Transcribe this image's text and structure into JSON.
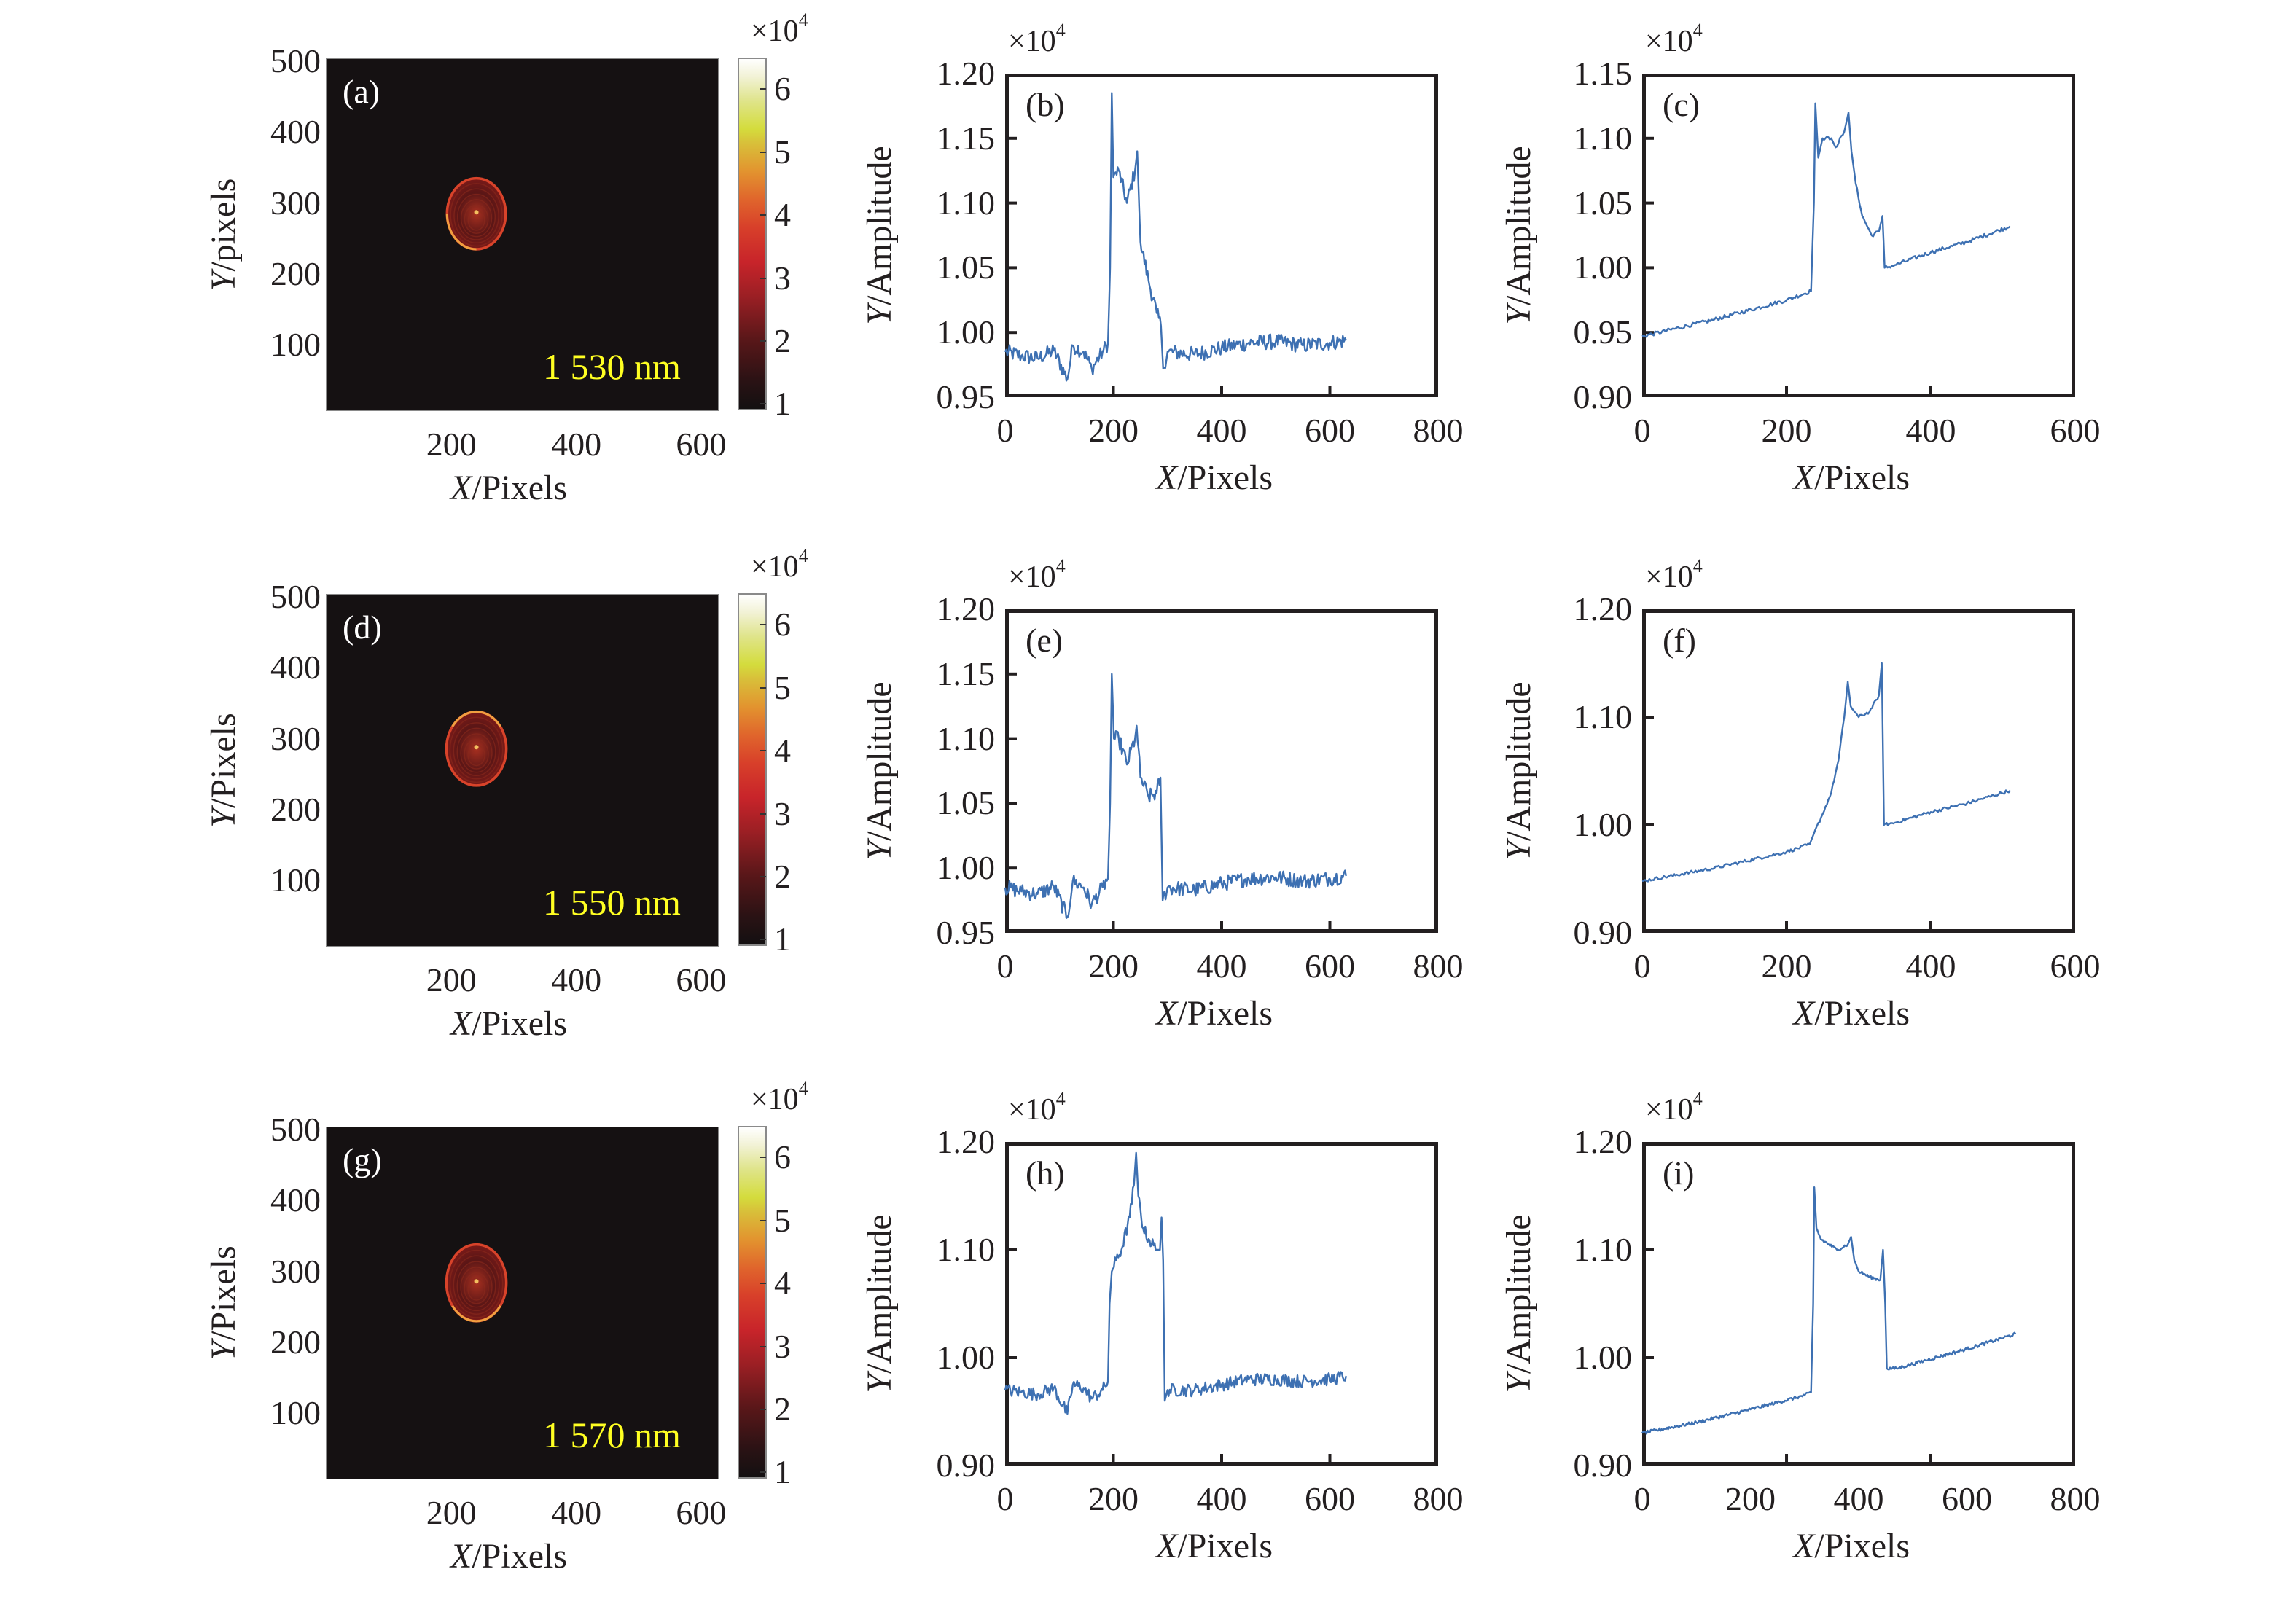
{
  "figure": {
    "colorbar_exponent_prefix": "×10",
    "colorbar_exponent_power": "4",
    "amplitude_exponent_prefix": "×10",
    "amplitude_exponent_power": "4",
    "xlabel_var": "X",
    "xlabel_unit": "/Pixels",
    "ylabel_amp_var": "Y",
    "ylabel_amp_unit": "/Amplitude",
    "colors": {
      "line": "#3d70b2",
      "wavelength_text": "#ffff22",
      "heat_background": "#151112"
    }
  },
  "chart_data": [
    {
      "id": "a",
      "type": "heatmap",
      "panel_label": "(a)",
      "wavelength": "1 530 nm",
      "ylabel_var": "Y",
      "ylabel_unit": "/pixels",
      "xlabel": "X/Pixels",
      "xticks": [
        200,
        400,
        600
      ],
      "yticks": [
        100,
        200,
        300,
        400,
        500
      ],
      "xlim": [
        0,
        627
      ],
      "ylim": [
        8,
        503
      ],
      "colorbar": {
        "ticks": [
          1,
          2,
          3,
          4,
          5,
          6
        ],
        "range": [
          0.9,
          6.5
        ],
        "scale": "×10^4"
      },
      "spot": {
        "cx": 240,
        "cy": 285,
        "rx": 47,
        "ry": 50,
        "bright_edge": "lower-left"
      }
    },
    {
      "id": "b",
      "type": "line",
      "panel_label": "(b)",
      "xlabel": "X/Pixels",
      "ylabel": "Y/Amplitude",
      "scale": "×10^4",
      "xlim": [
        0,
        800
      ],
      "ylim": [
        0.95,
        1.2
      ],
      "xticks": [
        "0",
        "200",
        "400",
        "600",
        "800"
      ],
      "xtick_values": [
        0,
        200,
        400,
        600,
        800
      ],
      "yticks": [
        "0.95",
        "1.00",
        "1.05",
        "1.10",
        "1.15",
        "1.20"
      ],
      "ytick_values": [
        0.95,
        1.0,
        1.05,
        1.1,
        1.15,
        1.2
      ],
      "noise": 0.006,
      "points": [
        [
          0,
          0.985
        ],
        [
          30,
          0.982
        ],
        [
          60,
          0.98
        ],
        [
          90,
          0.986
        ],
        [
          115,
          0.964
        ],
        [
          125,
          0.99
        ],
        [
          145,
          0.985
        ],
        [
          160,
          0.972
        ],
        [
          180,
          0.985
        ],
        [
          190,
          0.992
        ],
        [
          194,
          1.05
        ],
        [
          197,
          1.185
        ],
        [
          200,
          1.12
        ],
        [
          210,
          1.125
        ],
        [
          225,
          1.1
        ],
        [
          240,
          1.125
        ],
        [
          244,
          1.14
        ],
        [
          250,
          1.07
        ],
        [
          265,
          1.04
        ],
        [
          280,
          1.015
        ],
        [
          288,
          1.005
        ],
        [
          292,
          0.972
        ],
        [
          300,
          0.985
        ],
        [
          350,
          0.983
        ],
        [
          400,
          0.988
        ],
        [
          450,
          0.992
        ],
        [
          500,
          0.993
        ],
        [
          550,
          0.99
        ],
        [
          600,
          0.992
        ],
        [
          630,
          0.994
        ]
      ]
    },
    {
      "id": "c",
      "type": "line",
      "panel_label": "(c)",
      "xlabel": "X/Pixels",
      "ylabel": "Y/Amplitude",
      "scale": "×10^4",
      "xlim": [
        0,
        600
      ],
      "ylim": [
        0.9,
        1.15
      ],
      "xticks": [
        "0",
        "200",
        "400",
        "600"
      ],
      "xtick_values": [
        0,
        200,
        400,
        600
      ],
      "yticks": [
        "0.90",
        "0.95",
        "1.00",
        "1.05",
        "1.10",
        "1.15"
      ],
      "ytick_values": [
        0.9,
        0.95,
        1.0,
        1.05,
        1.1,
        1.15
      ],
      "noise": 0.0015,
      "points": [
        [
          0,
          0.947
        ],
        [
          100,
          0.96
        ],
        [
          200,
          0.975
        ],
        [
          234,
          0.982
        ],
        [
          238,
          1.05
        ],
        [
          240,
          1.127
        ],
        [
          244,
          1.085
        ],
        [
          250,
          1.1
        ],
        [
          262,
          1.1
        ],
        [
          268,
          1.093
        ],
        [
          280,
          1.105
        ],
        [
          286,
          1.12
        ],
        [
          290,
          1.09
        ],
        [
          296,
          1.065
        ],
        [
          305,
          1.04
        ],
        [
          318,
          1.025
        ],
        [
          328,
          1.028
        ],
        [
          333,
          1.04
        ],
        [
          336,
          1.0
        ],
        [
          350,
          1.002
        ],
        [
          400,
          1.012
        ],
        [
          450,
          1.02
        ],
        [
          510,
          1.032
        ]
      ]
    },
    {
      "id": "d",
      "type": "heatmap",
      "panel_label": "(d)",
      "wavelength": "1 550 nm",
      "ylabel_var": "Y",
      "ylabel_unit": "/Pixels",
      "xlabel": "X/Pixels",
      "xticks": [
        200,
        400,
        600
      ],
      "yticks": [
        100,
        200,
        300,
        400,
        500
      ],
      "xlim": [
        0,
        627
      ],
      "ylim": [
        8,
        503
      ],
      "colorbar": {
        "ticks": [
          1,
          2,
          3,
          4,
          5,
          6
        ],
        "range": [
          0.9,
          6.5
        ],
        "scale": "×10^4"
      },
      "spot": {
        "cx": 240,
        "cy": 286,
        "rx": 48,
        "ry": 52,
        "bright_edge": "top"
      }
    },
    {
      "id": "e",
      "type": "line",
      "panel_label": "(e)",
      "xlabel": "X/Pixels",
      "ylabel": "Y/Amplitude",
      "scale": "×10^4",
      "xlim": [
        0,
        800
      ],
      "ylim": [
        0.95,
        1.2
      ],
      "xticks": [
        "0",
        "200",
        "400",
        "600",
        "800"
      ],
      "xtick_values": [
        0,
        200,
        400,
        600,
        800
      ],
      "yticks": [
        "0.95",
        "1.00",
        "1.05",
        "1.10",
        "1.15",
        "1.20"
      ],
      "ytick_values": [
        0.95,
        1.0,
        1.05,
        1.1,
        1.15,
        1.2
      ],
      "noise": 0.006,
      "points": [
        [
          0,
          0.985
        ],
        [
          30,
          0.982
        ],
        [
          60,
          0.98
        ],
        [
          90,
          0.986
        ],
        [
          115,
          0.962
        ],
        [
          125,
          0.99
        ],
        [
          145,
          0.985
        ],
        [
          160,
          0.972
        ],
        [
          180,
          0.985
        ],
        [
          190,
          0.992
        ],
        [
          194,
          1.05
        ],
        [
          197,
          1.15
        ],
        [
          201,
          1.1
        ],
        [
          210,
          1.1
        ],
        [
          225,
          1.08
        ],
        [
          240,
          1.1
        ],
        [
          243,
          1.11
        ],
        [
          250,
          1.07
        ],
        [
          265,
          1.055
        ],
        [
          280,
          1.058
        ],
        [
          287,
          1.07
        ],
        [
          291,
          0.975
        ],
        [
          300,
          0.985
        ],
        [
          350,
          0.983
        ],
        [
          400,
          0.988
        ],
        [
          450,
          0.992
        ],
        [
          500,
          0.993
        ],
        [
          550,
          0.99
        ],
        [
          600,
          0.992
        ],
        [
          630,
          0.994
        ]
      ]
    },
    {
      "id": "f",
      "type": "line",
      "panel_label": "(f)",
      "xlabel": "X/Pixels",
      "ylabel": "Y/Amplitude",
      "scale": "×10^4",
      "xlim": [
        0,
        600
      ],
      "ylim": [
        0.9,
        1.2
      ],
      "xticks": [
        "0",
        "200",
        "400",
        "600"
      ],
      "xtick_values": [
        0,
        200,
        400,
        600
      ],
      "yticks": [
        "0.90",
        "1.00",
        "1.10",
        "1.20"
      ],
      "ytick_values": [
        0.9,
        1.0,
        1.1,
        1.2
      ],
      "noise": 0.0015,
      "points": [
        [
          0,
          0.948
        ],
        [
          100,
          0.96
        ],
        [
          200,
          0.975
        ],
        [
          232,
          0.982
        ],
        [
          238,
          0.992
        ],
        [
          250,
          1.01
        ],
        [
          262,
          1.03
        ],
        [
          272,
          1.06
        ],
        [
          280,
          1.1
        ],
        [
          285,
          1.133
        ],
        [
          289,
          1.11
        ],
        [
          300,
          1.1
        ],
        [
          315,
          1.105
        ],
        [
          328,
          1.12
        ],
        [
          332,
          1.15
        ],
        [
          335,
          1.0
        ],
        [
          350,
          1.002
        ],
        [
          400,
          1.012
        ],
        [
          450,
          1.02
        ],
        [
          510,
          1.032
        ]
      ]
    },
    {
      "id": "g",
      "type": "heatmap",
      "panel_label": "(g)",
      "wavelength": "1 570 nm",
      "ylabel_var": "Y",
      "ylabel_unit": "/Pixels",
      "xlabel": "X/Pixels",
      "xticks": [
        200,
        400,
        600
      ],
      "yticks": [
        100,
        200,
        300,
        400,
        500
      ],
      "xlim": [
        0,
        627
      ],
      "ylim": [
        8,
        503
      ],
      "colorbar": {
        "ticks": [
          1,
          2,
          3,
          4,
          5,
          6
        ],
        "range": [
          0.9,
          6.5
        ],
        "scale": "×10^4"
      },
      "spot": {
        "cx": 240,
        "cy": 284,
        "rx": 48,
        "ry": 54,
        "bright_edge": "bottom"
      }
    },
    {
      "id": "h",
      "type": "line",
      "panel_label": "(h)",
      "xlabel": "X/Pixels",
      "ylabel": "Y/Amplitude",
      "scale": "×10^4",
      "xlim": [
        0,
        800
      ],
      "ylim": [
        0.9,
        1.2
      ],
      "xticks": [
        "0",
        "200",
        "400",
        "600",
        "800"
      ],
      "xtick_values": [
        0,
        200,
        400,
        600,
        800
      ],
      "yticks": [
        "0.90",
        "1.00",
        "1.10",
        "1.20"
      ],
      "ytick_values": [
        0.9,
        1.0,
        1.1,
        1.2
      ],
      "noise": 0.006,
      "points": [
        [
          0,
          0.97
        ],
        [
          30,
          0.968
        ],
        [
          60,
          0.966
        ],
        [
          90,
          0.972
        ],
        [
          115,
          0.948
        ],
        [
          125,
          0.975
        ],
        [
          145,
          0.972
        ],
        [
          160,
          0.962
        ],
        [
          180,
          0.97
        ],
        [
          190,
          0.978
        ],
        [
          193,
          1.05
        ],
        [
          197,
          1.08
        ],
        [
          205,
          1.09
        ],
        [
          215,
          1.1
        ],
        [
          230,
          1.13
        ],
        [
          238,
          1.16
        ],
        [
          242,
          1.19
        ],
        [
          246,
          1.15
        ],
        [
          255,
          1.12
        ],
        [
          265,
          1.11
        ],
        [
          280,
          1.1
        ],
        [
          286,
          1.1
        ],
        [
          289,
          1.13
        ],
        [
          292,
          1.09
        ],
        [
          295,
          0.96
        ],
        [
          300,
          0.97
        ],
        [
          350,
          0.97
        ],
        [
          400,
          0.975
        ],
        [
          450,
          0.98
        ],
        [
          500,
          0.98
        ],
        [
          550,
          0.978
        ],
        [
          600,
          0.98
        ],
        [
          630,
          0.983
        ]
      ]
    },
    {
      "id": "i",
      "type": "line",
      "panel_label": "(i)",
      "xlabel": "X/Pixels",
      "ylabel": "Y/Amplitude",
      "scale": "×10^4",
      "xlim": [
        0,
        800
      ],
      "ylim": [
        0.9,
        1.2
      ],
      "xticks": [
        "0",
        "200",
        "400",
        "600",
        "800"
      ],
      "xtick_values": [
        0,
        200,
        400,
        600,
        800
      ],
      "xtick_marks": [
        266.7,
        533.3
      ],
      "yticks": [
        "0.90",
        "1.00",
        "1.10",
        "1.20"
      ],
      "ytick_values": [
        0.9,
        1.0,
        1.1,
        1.2
      ],
      "noise": 0.0015,
      "points": [
        [
          0,
          0.93
        ],
        [
          100,
          0.94
        ],
        [
          200,
          0.952
        ],
        [
          300,
          0.965
        ],
        [
          312,
          0.968
        ],
        [
          316,
          1.05
        ],
        [
          318,
          1.158
        ],
        [
          322,
          1.12
        ],
        [
          330,
          1.11
        ],
        [
          345,
          1.105
        ],
        [
          360,
          1.1
        ],
        [
          380,
          1.105
        ],
        [
          386,
          1.112
        ],
        [
          392,
          1.09
        ],
        [
          400,
          1.08
        ],
        [
          420,
          1.075
        ],
        [
          440,
          1.072
        ],
        [
          445,
          1.1
        ],
        [
          449,
          1.05
        ],
        [
          452,
          0.99
        ],
        [
          470,
          0.99
        ],
        [
          520,
          0.997
        ],
        [
          600,
          1.008
        ],
        [
          690,
          1.022
        ]
      ]
    }
  ]
}
